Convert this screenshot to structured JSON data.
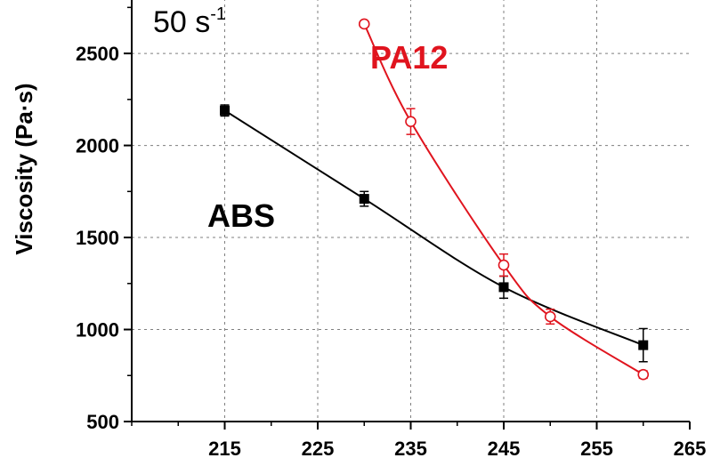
{
  "chart_data": {
    "type": "line",
    "title": "",
    "rate_label": "50 s",
    "rate_exponent": "-1",
    "xlabel": "",
    "ylabel": "Viscosity (Pa·s)",
    "xlim": [
      205,
      265
    ],
    "ylim": [
      500,
      2800
    ],
    "x_ticks": [
      "215",
      "225",
      "235",
      "245",
      "255",
      "265"
    ],
    "y_ticks": [
      "500",
      "1000",
      "1500",
      "2000",
      "2500"
    ],
    "x_tick_values": [
      215,
      225,
      235,
      245,
      255,
      265
    ],
    "y_tick_values": [
      500,
      1000,
      1500,
      2000,
      2500
    ],
    "grid": true,
    "series": [
      {
        "name": "ABS",
        "color": "#000000",
        "marker": "filled-square",
        "x": [
          215,
          230,
          245,
          260
        ],
        "y": [
          2190,
          1710,
          1230,
          915
        ],
        "err": [
          30,
          40,
          60,
          90
        ]
      },
      {
        "name": "PA12",
        "color": "#e0141e",
        "marker": "open-circle",
        "x": [
          230,
          235,
          245,
          250,
          260
        ],
        "y": [
          2660,
          2130,
          1350,
          1070,
          755
        ],
        "err": [
          15,
          70,
          60,
          40,
          20
        ]
      }
    ]
  }
}
